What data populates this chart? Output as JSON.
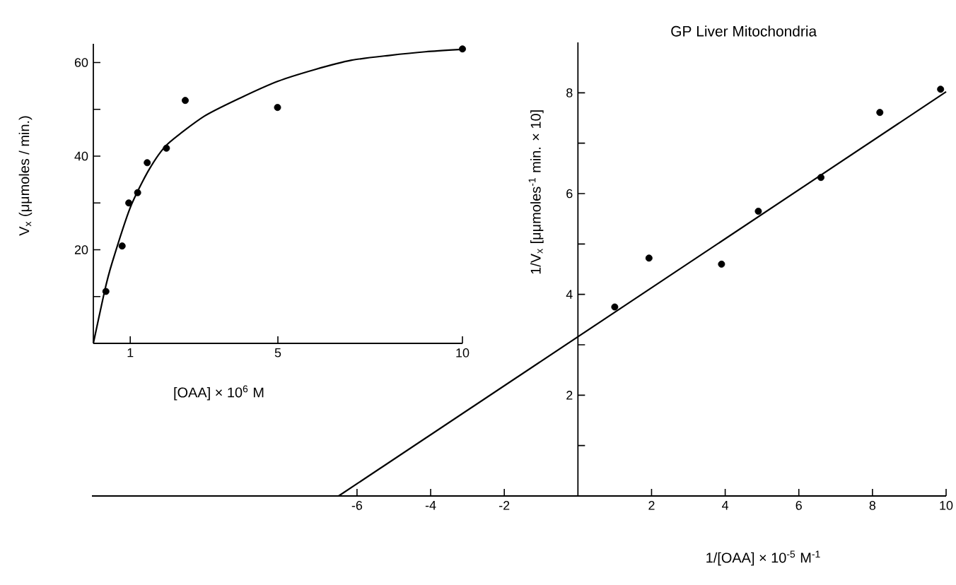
{
  "chart_data": [
    {
      "type": "scatter",
      "xlabel": "[OAA] × 10$^{6}$ M",
      "ylabel": "V$_{x}$  (μμmoles / min.)",
      "xlim": [
        0,
        10
      ],
      "ylim": [
        0,
        64
      ],
      "xticks": [
        1,
        5,
        10
      ],
      "yticks": [
        {
          "value": 10,
          "label": null
        },
        20,
        {
          "value": 30,
          "label": null
        },
        40,
        {
          "value": 50,
          "label": null
        },
        60
      ],
      "series": [
        {
          "type": "scatter",
          "marker": "circle",
          "color": "#000000",
          "x": [
            0.34,
            0.78,
            0.96,
            1.2,
            1.46,
            1.98,
            2.49,
            4.99,
            10
          ],
          "values": [
            11.1,
            20.8,
            30,
            32.2,
            38.6,
            41.7,
            51.9,
            50.4,
            62.9
          ]
        },
        {
          "type": "line",
          "marker": "none",
          "line_style": "solid",
          "color": "#000000",
          "x": [
            0,
            0.3,
            0.5,
            1,
            1.5,
            2,
            3,
            4,
            5,
            6,
            7,
            8,
            9,
            10
          ],
          "values": [
            0,
            11,
            17,
            29,
            37,
            42.5,
            48.5,
            52.5,
            56,
            58.5,
            60.5,
            61.5,
            62.3,
            62.8
          ]
        }
      ]
    },
    {
      "type": "scatter",
      "title": "GP Liver Mitochondria",
      "xlabel": "1/[OAA] × 10$^{-5}$ M$^{-1}$",
      "ylabel": "1/V$_{x}$ [μμmoles$^{-1}$ min. × 10]",
      "xlim": [
        -13.2,
        10
      ],
      "ylim": [
        0,
        9
      ],
      "xticks": [
        -6,
        -4,
        -2,
        2,
        4,
        6,
        8,
        10
      ],
      "yticks": [
        {
          "value": 1,
          "label": null
        },
        2,
        {
          "value": 3,
          "label": null
        },
        4,
        {
          "value": 5,
          "label": null
        },
        6,
        {
          "value": 7,
          "label": null
        },
        8
      ],
      "series": [
        {
          "type": "scatter",
          "marker": "circle",
          "color": "#000000",
          "x": [
            1,
            1.93,
            3.9,
            4.9,
            6.6,
            8.2,
            9.85
          ],
          "values": [
            3.75,
            4.72,
            4.6,
            5.65,
            6.32,
            7.61,
            8.07
          ]
        },
        {
          "type": "line",
          "marker": "none",
          "line_style": "solid",
          "color": "#000000",
          "x": [
            -6.5,
            10
          ],
          "values": [
            0,
            8.02
          ]
        }
      ]
    }
  ]
}
